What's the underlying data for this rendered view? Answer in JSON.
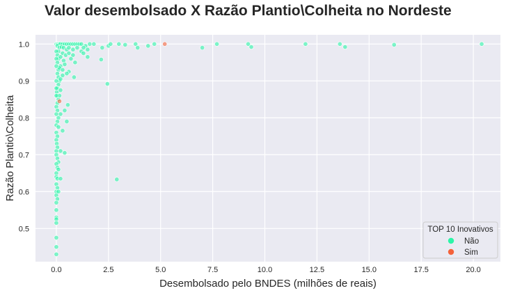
{
  "chart_data": {
    "type": "scatter",
    "title": "Valor desembolsado X Razão Plantio\\Colheita no Nordeste",
    "xlabel": "Desembolsado pelo BNDES (milhões de reais)",
    "ylabel": "Razão Plantio\\Colheita",
    "xlim": [
      -1.0,
      21.3
    ],
    "ylim": [
      0.41,
      1.025
    ],
    "xticks": [
      0.0,
      2.5,
      5.0,
      7.5,
      10.0,
      12.5,
      15.0,
      17.5,
      20.0
    ],
    "xtick_labels": [
      "0.0",
      "2.5",
      "5.0",
      "7.5",
      "10.0",
      "12.5",
      "15.0",
      "17.5",
      "20.0"
    ],
    "yticks": [
      0.5,
      0.6,
      0.7,
      0.8,
      0.9,
      1.0
    ],
    "ytick_labels": [
      "0.5",
      "0.6",
      "0.7",
      "0.8",
      "0.9",
      "1.0"
    ],
    "grid": true,
    "legend": {
      "title": "TOP 10 Inovativos",
      "placement": "bottom-right",
      "entries": [
        {
          "label": "Não",
          "color": "#2cf5a8"
        },
        {
          "label": "Sim",
          "color": "#f4623a"
        }
      ]
    },
    "colors": {
      "background": "#eaeaf2",
      "grid": "#ffffff",
      "nao": "#2cf5a8",
      "sim": "#f4623a"
    },
    "series": [
      {
        "name": "Não",
        "points": [
          [
            0.0,
            1.0
          ],
          [
            0.05,
            1.0
          ],
          [
            0.1,
            1.0
          ],
          [
            0.15,
            1.0
          ],
          [
            0.2,
            1.0
          ],
          [
            0.3,
            1.0
          ],
          [
            0.4,
            1.0
          ],
          [
            0.5,
            1.0
          ],
          [
            0.6,
            1.0
          ],
          [
            0.7,
            1.0
          ],
          [
            0.8,
            1.0
          ],
          [
            0.9,
            1.0
          ],
          [
            1.0,
            1.0
          ],
          [
            1.1,
            1.0
          ],
          [
            1.2,
            1.0
          ],
          [
            1.4,
            0.995
          ],
          [
            1.6,
            1.0
          ],
          [
            1.8,
            1.0
          ],
          [
            2.2,
            0.99
          ],
          [
            2.5,
            0.995
          ],
          [
            2.6,
            1.0
          ],
          [
            3.0,
            1.0
          ],
          [
            3.3,
            0.998
          ],
          [
            3.8,
            1.0
          ],
          [
            3.9,
            0.99
          ],
          [
            4.4,
            0.995
          ],
          [
            4.7,
            1.0
          ],
          [
            7.0,
            0.99
          ],
          [
            7.7,
            1.0
          ],
          [
            9.2,
            1.0
          ],
          [
            9.35,
            0.992
          ],
          [
            11.95,
            1.0
          ],
          [
            13.6,
            1.0
          ],
          [
            13.85,
            0.992
          ],
          [
            16.2,
            0.998
          ],
          [
            20.4,
            1.0
          ],
          [
            0.05,
            0.995
          ],
          [
            0.15,
            0.99
          ],
          [
            0.25,
            0.992
          ],
          [
            0.35,
            0.99
          ],
          [
            0.5,
            0.985
          ],
          [
            0.6,
            0.99
          ],
          [
            0.8,
            0.985
          ],
          [
            1.0,
            0.99
          ],
          [
            1.3,
            0.99
          ],
          [
            0.1,
            0.98
          ],
          [
            0.3,
            0.975
          ],
          [
            0.45,
            0.97
          ],
          [
            0.6,
            0.975
          ],
          [
            0.8,
            0.97
          ],
          [
            1.2,
            0.98
          ],
          [
            1.5,
            0.985
          ],
          [
            1.5,
            0.965
          ],
          [
            1.3,
            0.975
          ],
          [
            0.0,
            0.98
          ],
          [
            0.05,
            0.97
          ],
          [
            0.1,
            0.96
          ],
          [
            0.2,
            0.965
          ],
          [
            0.35,
            0.955
          ],
          [
            0.7,
            0.96
          ],
          [
            0.9,
            0.95
          ],
          [
            0.4,
            0.945
          ],
          [
            0.2,
            0.94
          ],
          [
            0.0,
            0.96
          ],
          [
            0.05,
            0.95
          ],
          [
            0.1,
            0.93
          ],
          [
            0.15,
            0.935
          ],
          [
            0.3,
            0.93
          ],
          [
            0.6,
            0.925
          ],
          [
            0.85,
            0.91
          ],
          [
            0.5,
            0.92
          ],
          [
            2.15,
            0.958
          ],
          [
            0.0,
            0.94
          ],
          [
            0.05,
            0.92
          ],
          [
            0.1,
            0.91
          ],
          [
            0.15,
            0.9
          ],
          [
            0.2,
            0.905
          ],
          [
            0.3,
            0.915
          ],
          [
            0.1,
            0.89
          ],
          [
            0.05,
            0.88
          ],
          [
            2.45,
            0.892
          ],
          [
            0.0,
            0.9
          ],
          [
            0.02,
            0.87
          ],
          [
            0.05,
            0.86
          ],
          [
            0.1,
            0.85
          ],
          [
            0.0,
            0.88
          ],
          [
            0.15,
            0.86
          ],
          [
            0.2,
            0.875
          ],
          [
            0.05,
            0.84
          ],
          [
            0.0,
            0.86
          ],
          [
            0.0,
            0.83
          ],
          [
            0.05,
            0.82
          ],
          [
            0.1,
            0.8
          ],
          [
            0.2,
            0.81
          ],
          [
            0.4,
            0.82
          ],
          [
            0.55,
            0.835
          ],
          [
            0.0,
            0.81
          ],
          [
            0.05,
            0.79
          ],
          [
            0.5,
            0.79
          ],
          [
            0.0,
            0.78
          ],
          [
            0.1,
            0.775
          ],
          [
            0.3,
            0.765
          ],
          [
            0.0,
            0.76
          ],
          [
            0.05,
            0.75
          ],
          [
            0.0,
            0.74
          ],
          [
            0.02,
            0.73
          ],
          [
            0.05,
            0.72
          ],
          [
            0.2,
            0.71
          ],
          [
            0.4,
            0.705
          ],
          [
            0.0,
            0.71
          ],
          [
            0.0,
            0.7
          ],
          [
            0.05,
            0.69
          ],
          [
            0.1,
            0.68
          ],
          [
            0.0,
            0.675
          ],
          [
            0.05,
            0.665
          ],
          [
            0.0,
            0.65
          ],
          [
            0.1,
            0.66
          ],
          [
            0.0,
            0.64
          ],
          [
            0.05,
            0.635
          ],
          [
            0.2,
            0.635
          ],
          [
            0.0,
            0.62
          ],
          [
            0.05,
            0.61
          ],
          [
            0.0,
            0.6
          ],
          [
            0.1,
            0.6
          ],
          [
            0.0,
            0.59
          ],
          [
            0.05,
            0.58
          ],
          [
            0.0,
            0.57
          ],
          [
            0.0,
            0.55
          ],
          [
            0.0,
            0.53
          ],
          [
            0.0,
            0.525
          ],
          [
            0.0,
            0.515
          ],
          [
            0.0,
            0.475
          ],
          [
            0.0,
            0.45
          ],
          [
            0.0,
            0.43
          ],
          [
            2.9,
            0.633
          ]
        ]
      },
      {
        "name": "Sim",
        "points": [
          [
            5.2,
            1.0
          ],
          [
            0.15,
            0.845
          ]
        ]
      }
    ]
  }
}
